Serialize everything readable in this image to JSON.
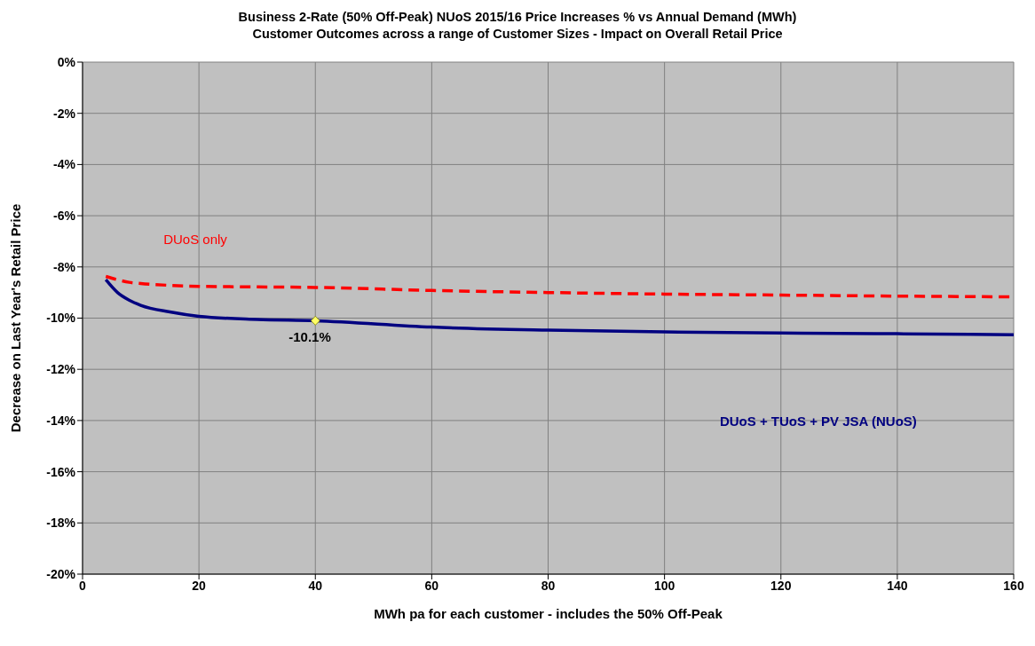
{
  "chart_data": {
    "type": "line",
    "title": "Business 2-Rate (50% Off-Peak) NUoS 2015/16 Price Increases % vs Annual Demand (MWh)",
    "subtitle": "Customer Outcomes across a range of Customer Sizes - Impact on Overall Retail Price",
    "xlabel": "MWh pa for each customer - includes the 50% Off-Peak",
    "ylabel": "Decrease on Last Year's Retail Price",
    "series": [
      {
        "name": "DUoS only",
        "color": "#ff0000",
        "line_style": "dashed",
        "x": [
          4,
          6,
          8,
          10,
          15,
          20,
          30,
          40,
          60,
          80,
          100,
          120,
          140,
          160
        ],
        "values": [
          -8.37,
          -8.5,
          -8.6,
          -8.65,
          -8.72,
          -8.76,
          -8.78,
          -8.8,
          -8.92,
          -9.0,
          -9.06,
          -9.1,
          -9.14,
          -9.17
        ]
      },
      {
        "name": "DUoS + TUoS + PV JSA (NUoS)",
        "color": "#000080",
        "line_style": "solid",
        "x": [
          4,
          6,
          8,
          10,
          15,
          20,
          30,
          40,
          60,
          80,
          100,
          120,
          140,
          160
        ],
        "values": [
          -8.5,
          -9.0,
          -9.3,
          -9.5,
          -9.76,
          -9.93,
          -10.05,
          -10.1,
          -10.35,
          -10.47,
          -10.54,
          -10.58,
          -10.61,
          -10.65
        ]
      },
      {
        "type": "scatter",
        "color": "#ffff66",
        "marker": "diamond",
        "x": [
          40
        ],
        "values": [
          -10.1
        ]
      }
    ],
    "annotations": [
      {
        "text": "-10.1%",
        "x": 40,
        "y": -10.1
      }
    ],
    "xlim": [
      0,
      160
    ],
    "xticks": [
      0,
      20,
      40,
      60,
      80,
      100,
      120,
      140,
      160
    ],
    "ylim": [
      -20,
      0
    ],
    "yticks": [
      {
        "value": 0,
        "label": "0%"
      },
      {
        "value": -2,
        "label": "-2%"
      },
      {
        "value": -4,
        "label": "-4%"
      },
      {
        "value": -6,
        "label": "-6%"
      },
      {
        "value": -8,
        "label": "-8%"
      },
      {
        "value": -10,
        "label": "-10%"
      },
      {
        "value": -12,
        "label": "-12%"
      },
      {
        "value": -14,
        "label": "-14%"
      },
      {
        "value": -16,
        "label": "-16%"
      },
      {
        "value": -18,
        "label": "-18%"
      },
      {
        "value": -20,
        "label": "-20%"
      }
    ],
    "grid": true
  }
}
